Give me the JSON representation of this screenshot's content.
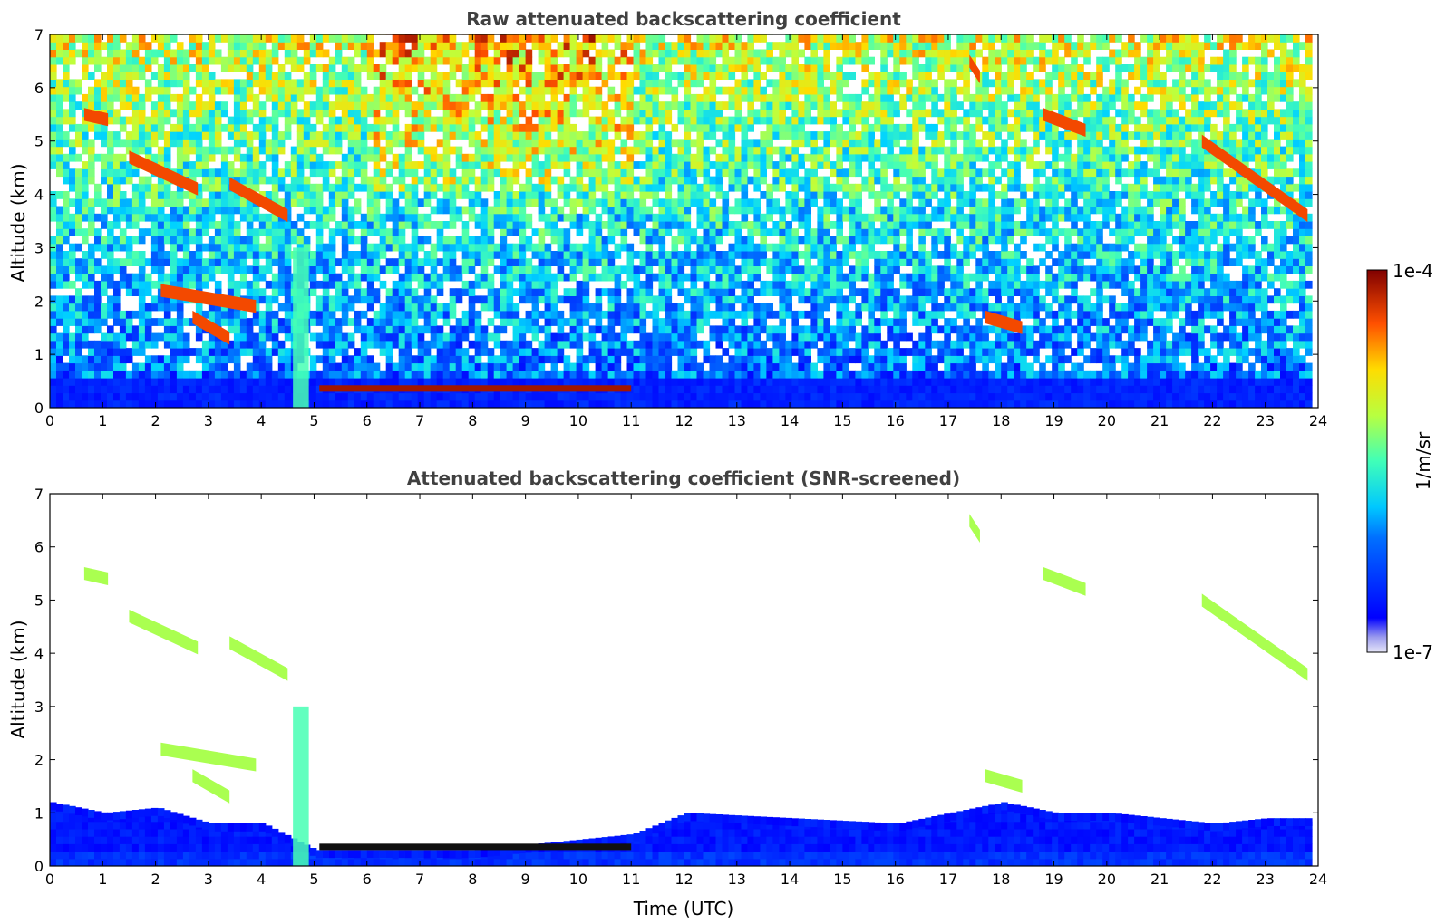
{
  "chart_data": [
    {
      "type": "heatmap",
      "title": "Raw attenuated backscattering coefficient",
      "xlabel": "",
      "ylabel": "Altitude (km)",
      "xlim": [
        0,
        24
      ],
      "ylim": [
        0,
        7
      ],
      "xticks": [
        "0",
        "1",
        "2",
        "3",
        "4",
        "5",
        "6",
        "7",
        "8",
        "9",
        "10",
        "11",
        "12",
        "13",
        "14",
        "15",
        "16",
        "17",
        "18",
        "19",
        "20",
        "21",
        "22",
        "23",
        "24"
      ],
      "yticks": [
        "0",
        "1",
        "2",
        "3",
        "4",
        "5",
        "6",
        "7"
      ],
      "data_end_time": 23.8,
      "boundary_layer_top_km": 0.5,
      "low_cloud": {
        "start": 5.1,
        "end": 11.0,
        "altitude_km": 0.3
      },
      "precipitation_shaft": {
        "start": 4.6,
        "end": 4.9
      },
      "cloud_features": [
        {
          "t0": 0.65,
          "t1": 1.1,
          "z0": 5.5,
          "z1": 5.4
        },
        {
          "t0": 1.5,
          "t1": 2.8,
          "z0": 4.7,
          "z1": 4.1
        },
        {
          "t0": 3.4,
          "t1": 4.5,
          "z0": 4.2,
          "z1": 3.6
        },
        {
          "t0": 2.1,
          "t1": 3.9,
          "z0": 2.2,
          "z1": 1.9
        },
        {
          "t0": 2.7,
          "t1": 3.4,
          "z0": 1.7,
          "z1": 1.3
        },
        {
          "t0": 17.4,
          "t1": 17.6,
          "z0": 6.5,
          "z1": 6.2
        },
        {
          "t0": 17.7,
          "t1": 18.4,
          "z0": 1.7,
          "z1": 1.5
        },
        {
          "t0": 18.8,
          "t1": 19.6,
          "z0": 5.5,
          "z1": 5.2
        },
        {
          "t0": 21.8,
          "t1": 23.8,
          "z0": 5.0,
          "z1": 3.6
        }
      ]
    },
    {
      "type": "heatmap",
      "title": "Attenuated backscattering coefficient (SNR-screened)",
      "xlabel": "Time (UTC)",
      "ylabel": "Altitude (km)",
      "xlim": [
        0,
        24
      ],
      "ylim": [
        0,
        7
      ],
      "xticks": [
        "0",
        "1",
        "2",
        "3",
        "4",
        "5",
        "6",
        "7",
        "8",
        "9",
        "10",
        "11",
        "12",
        "13",
        "14",
        "15",
        "16",
        "17",
        "18",
        "19",
        "20",
        "21",
        "22",
        "23",
        "24"
      ],
      "yticks": [
        "0",
        "1",
        "2",
        "3",
        "4",
        "5",
        "6",
        "7"
      ],
      "data_end_time": 23.8,
      "boundary_layer_top_km": [
        [
          0,
          1.2
        ],
        [
          1,
          1.0
        ],
        [
          2,
          1.1
        ],
        [
          3,
          0.8
        ],
        [
          4,
          0.8
        ],
        [
          5,
          0.3
        ],
        [
          8,
          0.3
        ],
        [
          11,
          0.6
        ],
        [
          12,
          1.0
        ],
        [
          14,
          0.9
        ],
        [
          16,
          0.8
        ],
        [
          18,
          1.2
        ],
        [
          19,
          1.0
        ],
        [
          20,
          1.0
        ],
        [
          21,
          0.9
        ],
        [
          22,
          0.8
        ],
        [
          23,
          0.9
        ],
        [
          23.8,
          0.9
        ]
      ]
    }
  ],
  "colorbar": {
    "label": "1/m/sr",
    "min_label": "1e-7",
    "max_label": "1e-4",
    "colormap": "jet"
  }
}
